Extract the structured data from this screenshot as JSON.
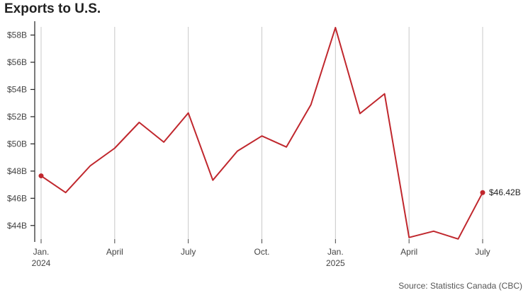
{
  "chart_data": {
    "type": "line",
    "title": "Exports to U.S.",
    "source": "Source: Statistics Canada (CBC)",
    "x": [
      "2024-01",
      "2024-02",
      "2024-03",
      "2024-04",
      "2024-05",
      "2024-06",
      "2024-07",
      "2024-08",
      "2024-09",
      "2024-10",
      "2024-11",
      "2024-12",
      "2025-01",
      "2025-02",
      "2025-03",
      "2025-04",
      "2025-05",
      "2025-06",
      "2025-07"
    ],
    "series": [
      {
        "values": [
          47.65,
          46.42,
          48.38,
          49.68,
          51.58,
          50.13,
          52.27,
          47.33,
          49.47,
          50.58,
          49.77,
          52.88,
          58.55,
          52.23,
          53.68,
          43.12,
          43.58,
          43.01,
          46.42
        ]
      }
    ],
    "y_ticks": [
      "$44B",
      "$46B",
      "$48B",
      "$50B",
      "$52B",
      "$54B",
      "$56B",
      "$58B"
    ],
    "y_tick_values": [
      44,
      46,
      48,
      50,
      52,
      54,
      56,
      58
    ],
    "x_ticks": [
      {
        "month": "2024-01",
        "label": "Jan.",
        "sublabel": "2024"
      },
      {
        "month": "2024-04",
        "label": "April",
        "sublabel": ""
      },
      {
        "month": "2024-07",
        "label": "July",
        "sublabel": ""
      },
      {
        "month": "2024-10",
        "label": "Oct.",
        "sublabel": ""
      },
      {
        "month": "2025-01",
        "label": "Jan.",
        "sublabel": "2025"
      },
      {
        "month": "2025-04",
        "label": "April",
        "sublabel": ""
      },
      {
        "month": "2025-07",
        "label": "July",
        "sublabel": ""
      }
    ],
    "end_label": "$46.42B",
    "ylim": [
      43,
      58.6
    ],
    "line_color": "#c0272d",
    "grid": "vertical at ticks"
  }
}
